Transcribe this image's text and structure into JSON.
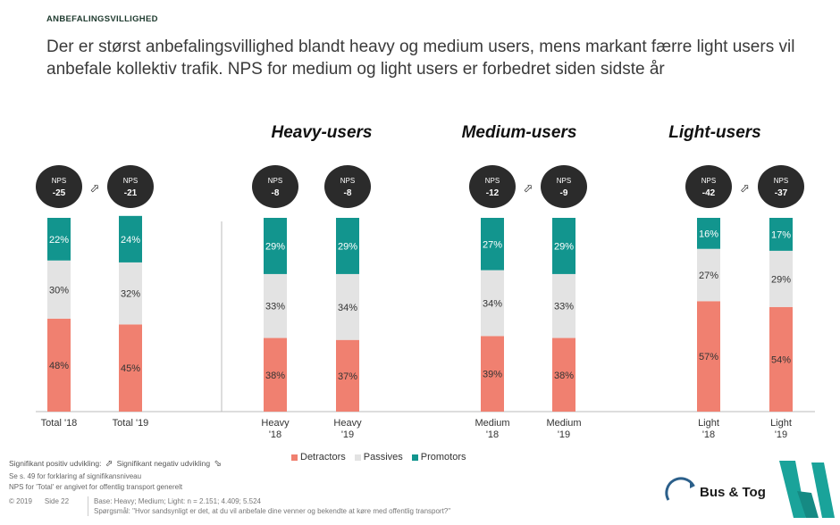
{
  "header": {
    "kicker": "ANBEFALINGSVILLIGHED",
    "headline": "Der er størst anbefalingsvillighed blandt heavy og medium users, mens markant færre light users vil anbefale kollektiv trafik. NPS for medium og light users er forbedret siden sidste år"
  },
  "groups": [
    {
      "title": ""
    },
    {
      "title": "Heavy-users"
    },
    {
      "title": "Medium-users"
    },
    {
      "title": "Light-users"
    }
  ],
  "chart_data": {
    "type": "bar",
    "stacked": true,
    "categories": [
      "Total '18",
      "Total '19",
      "Heavy '18",
      "Heavy '19",
      "Medium '18",
      "Medium '19",
      "Light '18",
      "Light '19"
    ],
    "category_lines": [
      [
        "Total '18"
      ],
      [
        "Total '19"
      ],
      [
        "Heavy",
        "'18"
      ],
      [
        "Heavy",
        "'19"
      ],
      [
        "Medium",
        "'18"
      ],
      [
        "Medium",
        "'19"
      ],
      [
        "Light",
        "'18"
      ],
      [
        "Light",
        "'19"
      ]
    ],
    "series": [
      {
        "name": "Detractors",
        "color": "#f08070",
        "values": [
          48,
          45,
          38,
          37,
          39,
          38,
          57,
          54
        ],
        "labels": [
          "48%",
          "45%",
          "38%",
          "37%",
          "39%",
          "38%",
          "57%",
          "54%"
        ]
      },
      {
        "name": "Passives",
        "color": "#e3e3e3",
        "values": [
          30,
          32,
          33,
          34,
          34,
          33,
          27,
          29
        ],
        "labels": [
          "30%",
          "32%",
          "33%",
          "34%",
          "34%",
          "33%",
          "27%",
          "29%"
        ]
      },
      {
        "name": "Promotors",
        "color": "#12958e",
        "values": [
          22,
          24,
          29,
          29,
          27,
          29,
          16,
          17
        ],
        "labels": [
          "22%",
          "24%",
          "29%",
          "29%",
          "27%",
          "29%",
          "16%",
          "17%"
        ]
      }
    ],
    "nps": {
      "label": "NPS",
      "values": [
        "-25",
        "-21",
        "-8",
        "-8",
        "-12",
        "-9",
        "-42",
        "-37"
      ]
    },
    "significance_arrows": [
      "up",
      "",
      "up",
      "up"
    ],
    "ylim": [
      0,
      100
    ],
    "legend_position": "bottom"
  },
  "legend": [
    {
      "label": "Detractors",
      "color": "#f08070"
    },
    {
      "label": "Passives",
      "color": "#e3e3e3"
    },
    {
      "label": "Promotors",
      "color": "#12958e"
    }
  ],
  "footnotes": {
    "line1_a": "Signifikant positiv udvikling:",
    "line1_b": "Signifikant negativ udvikling",
    "line2": "Se s. 49 for forklaring af signifikansniveau",
    "line3": "NPS for 'Total' er angivet for offentlig transport generelt",
    "copyright": "© 2019",
    "page": "Side 22",
    "base": "Base: Heavy; Medium; Light: n = 2.151; 4.409; 5.524",
    "question": "Spørgsmål: \"Hvor sandsynligt er det, at du vil anbefale dine venner og bekendte at køre med offentlig transport?\""
  },
  "logo": {
    "text": "Bus & Tog",
    "brand_color": "#1aa39a"
  }
}
